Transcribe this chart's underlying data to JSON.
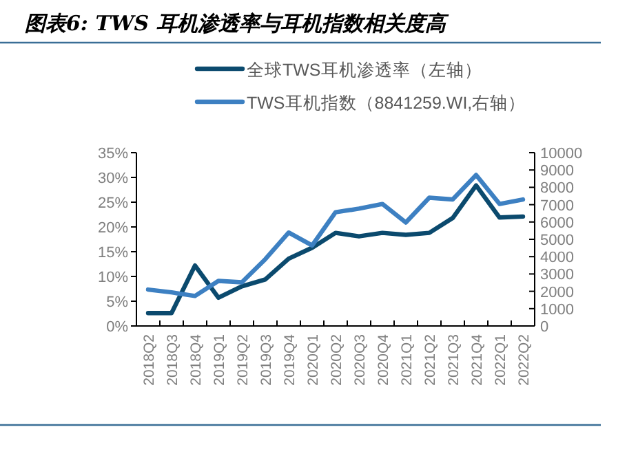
{
  "chart_data": {
    "type": "line",
    "title": "图表6: TWS 耳机渗透率与耳机指数相关度高",
    "categories": [
      "2018Q2",
      "2018Q3",
      "2018Q4",
      "2019Q1",
      "2019Q2",
      "2019Q3",
      "2019Q4",
      "2020Q1",
      "2020Q2",
      "2020Q3",
      "2020Q4",
      "2021Q1",
      "2021Q2",
      "2021Q3",
      "2021Q4",
      "2022Q1",
      "2022Q2"
    ],
    "series": [
      {
        "name": "全球TWS耳机渗透率（左轴）",
        "color": "#0b4a6e",
        "values": [
          2.6,
          2.6,
          12.2,
          5.7,
          8.0,
          9.4,
          13.6,
          15.8,
          18.8,
          18.1,
          18.8,
          18.4,
          18.8,
          21.8,
          28.4,
          21.9,
          22.1
        ]
      },
      {
        "name": "TWS耳机指数（8841259.WI,右轴）",
        "color": "#3d80c2",
        "axis": "y2",
        "values": [
          2100,
          1940,
          1730,
          2600,
          2520,
          3850,
          5390,
          4650,
          6560,
          6770,
          7040,
          5970,
          7400,
          7300,
          8710,
          7040,
          7300
        ]
      }
    ],
    "ylim": [
      0,
      35
    ],
    "yticks": [
      {
        "value": 0,
        "label": "0%"
      },
      {
        "value": 5,
        "label": "5%"
      },
      {
        "value": 10,
        "label": "10%"
      },
      {
        "value": 15,
        "label": "15%"
      },
      {
        "value": 20,
        "label": "20%"
      },
      {
        "value": 25,
        "label": "25%"
      },
      {
        "value": 30,
        "label": "30%"
      },
      {
        "value": 35,
        "label": "35%"
      }
    ],
    "y2lim": [
      0,
      10000
    ],
    "y2ticks": [
      0,
      1000,
      2000,
      3000,
      4000,
      5000,
      6000,
      7000,
      8000,
      9000,
      10000
    ],
    "legend": "top",
    "grid": false,
    "marker": "none",
    "line_style": "solid"
  }
}
